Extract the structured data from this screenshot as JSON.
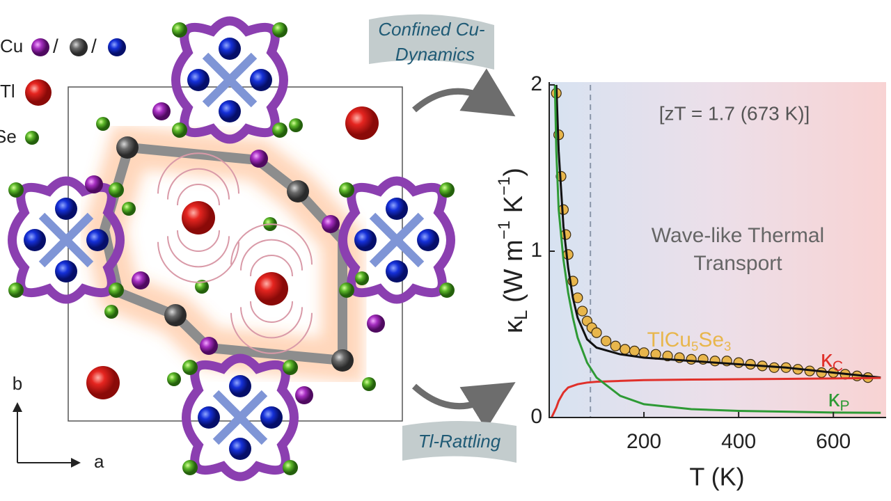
{
  "structure": {
    "legend": {
      "cu": "Cu",
      "sep1": "/",
      "sep2": "/",
      "tl": "Tl",
      "se": "Se"
    },
    "axes": {
      "b": "b",
      "a": "a"
    },
    "arrows": {
      "top": [
        "Confined Cu-",
        "Dynamics"
      ],
      "bottom": "Tl-Rattling"
    }
  },
  "chart_data": {
    "type": "scatter",
    "xlabel": "T (K)",
    "ylabel": [
      "κ",
      "L",
      " (W m",
      "−1",
      " K",
      "−1",
      ")"
    ],
    "annotations": {
      "zt": "[zT = 1.7 (673 K)]",
      "wave": [
        "Wave-like Thermal",
        "Transport"
      ]
    },
    "xlim": [
      0,
      707
    ],
    "ylim": [
      0,
      2
    ],
    "xticks": [
      200,
      400,
      600
    ],
    "yticks": [
      0,
      1,
      2
    ],
    "dashed_x": 87,
    "series": [
      {
        "name": [
          "TlCu",
          "5",
          "Se",
          "3"
        ],
        "kind": "markers",
        "color": "#e8b64c",
        "x": [
          15,
          20,
          25,
          30,
          35,
          40,
          50,
          60,
          70,
          80,
          90,
          100,
          120,
          140,
          160,
          180,
          200,
          225,
          250,
          275,
          300,
          325,
          350,
          375,
          400,
          425,
          450,
          475,
          500,
          525,
          550,
          575,
          600,
          625,
          650,
          673
        ],
        "values": [
          1.95,
          1.7,
          1.45,
          1.25,
          1.1,
          0.98,
          0.82,
          0.72,
          0.64,
          0.58,
          0.54,
          0.51,
          0.46,
          0.43,
          0.41,
          0.4,
          0.39,
          0.38,
          0.37,
          0.36,
          0.35,
          0.35,
          0.34,
          0.34,
          0.33,
          0.32,
          0.31,
          0.3,
          0.3,
          0.29,
          0.28,
          0.27,
          0.27,
          0.26,
          0.25,
          0.24
        ]
      },
      {
        "kind": "line",
        "color": "#111111",
        "x": [
          15,
          20,
          30,
          40,
          50,
          60,
          80,
          100,
          150,
          200,
          300,
          400,
          500,
          600,
          700
        ],
        "values": [
          2.0,
          1.6,
          1.15,
          0.9,
          0.72,
          0.6,
          0.47,
          0.42,
          0.38,
          0.36,
          0.34,
          0.32,
          0.3,
          0.27,
          0.24
        ]
      },
      {
        "name": [
          "κ",
          "C"
        ],
        "kind": "line",
        "color": "#e0302a",
        "x": [
          5,
          10,
          15,
          20,
          30,
          40,
          50,
          60,
          80,
          100,
          150,
          200,
          300,
          400,
          500,
          600,
          700
        ],
        "values": [
          0,
          0.03,
          0.06,
          0.1,
          0.15,
          0.18,
          0.19,
          0.2,
          0.21,
          0.215,
          0.22,
          0.225,
          0.228,
          0.23,
          0.232,
          0.235,
          0.238
        ]
      },
      {
        "name": [
          "κ",
          "P"
        ],
        "kind": "line",
        "color": "#2e9a35",
        "x": [
          12,
          15,
          20,
          30,
          40,
          50,
          60,
          80,
          100,
          150,
          200,
          300,
          400,
          500,
          600,
          700
        ],
        "values": [
          2.0,
          1.6,
          1.25,
          0.95,
          0.75,
          0.6,
          0.48,
          0.33,
          0.24,
          0.13,
          0.08,
          0.05,
          0.04,
          0.035,
          0.03,
          0.028
        ]
      }
    ]
  }
}
